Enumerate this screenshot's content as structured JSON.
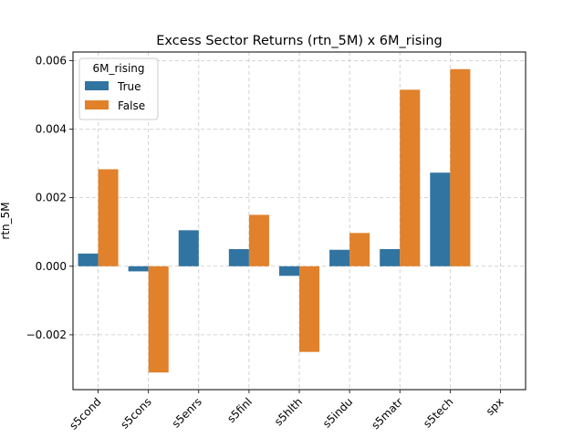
{
  "chart_data": {
    "type": "bar",
    "title": "Excess Sector Returns (rtn_5M) x 6M_rising",
    "xlabel": "",
    "ylabel": "rtn_5M",
    "categories": [
      "s5cond",
      "s5cons",
      "s5enrs",
      "s5finl",
      "s5hlth",
      "s5indu",
      "s5matr",
      "s5tech",
      "spx"
    ],
    "series": [
      {
        "name": "True",
        "color": "#3274a1",
        "values": [
          0.00037,
          -0.00015,
          0.00105,
          0.0005,
          -0.00028,
          0.00048,
          0.0005,
          0.00273,
          null
        ]
      },
      {
        "name": "False",
        "color": "#e1812c",
        "values": [
          0.00283,
          -0.0031,
          null,
          0.0015,
          -0.0025,
          0.00097,
          0.00515,
          0.00575,
          null
        ]
      }
    ],
    "ylim": [
      -0.0036,
      0.00625
    ],
    "yticks": [
      -0.002,
      0.0,
      0.002,
      0.004,
      0.006
    ],
    "ytick_labels": [
      "−0.002",
      "0.000",
      "0.002",
      "0.004",
      "0.006"
    ],
    "grid": true,
    "legend": {
      "title": "6M_rising",
      "placement": "top-left",
      "entries": [
        "True",
        "False"
      ]
    }
  }
}
